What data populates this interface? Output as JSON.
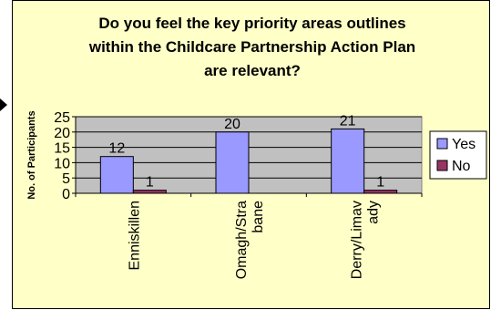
{
  "chart_data": {
    "type": "bar",
    "title_lines": [
      "Do you feel the key priority areas outlines",
      "within the Childcare Partnership Action Plan",
      "are relevant?"
    ],
    "ylabel": "No. of Participants",
    "categories": [
      "Enniskillen",
      "Omagh/Strabane",
      "Derry/Limavady"
    ],
    "category_label_lines": [
      [
        "Enniskillen"
      ],
      [
        "Omagh/Stra",
        "bane"
      ],
      [
        "Derry/Limav",
        "ady"
      ]
    ],
    "series": [
      {
        "name": "Yes",
        "values": [
          12,
          20,
          21
        ],
        "color": "#9999ff"
      },
      {
        "name": "No",
        "values": [
          1,
          null,
          1
        ],
        "color": "#993366"
      }
    ],
    "ylim": [
      0,
      25
    ],
    "yticks": [
      0,
      5,
      10,
      15,
      20,
      25
    ],
    "grid": true,
    "legend_position": "right",
    "plot_bg": "#c0c0c0",
    "frame_bg": "#ffffc8"
  }
}
